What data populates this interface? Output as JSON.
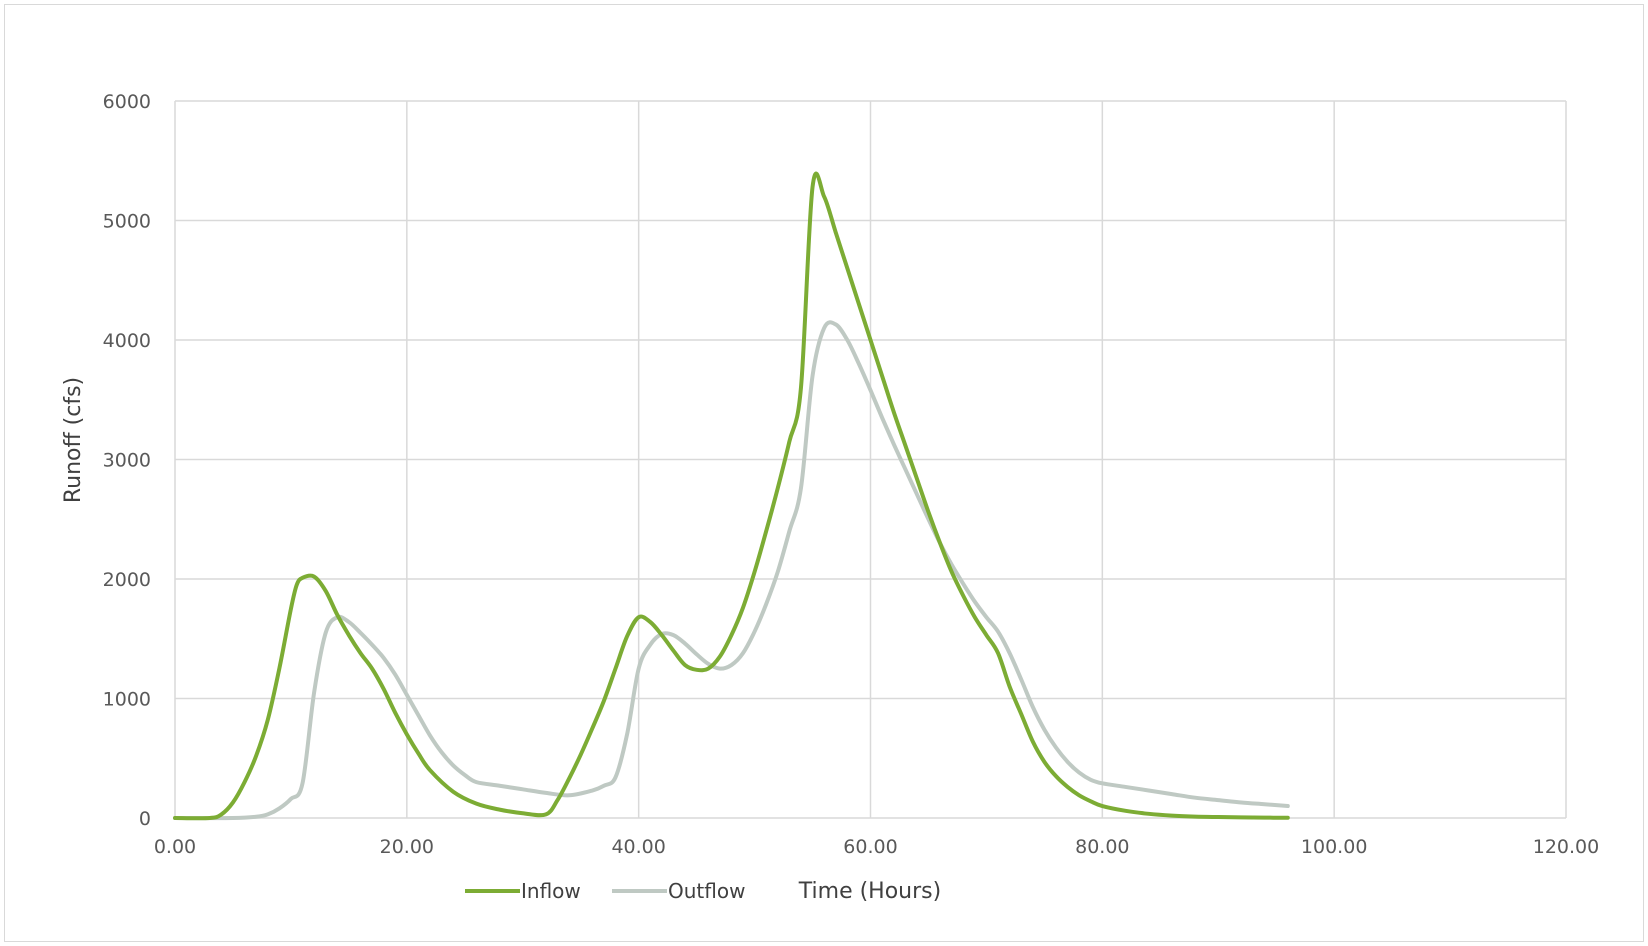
{
  "chart_data": {
    "type": "line",
    "title": "",
    "xlabel": "Time (Hours)",
    "ylabel": "Runoff (cfs)",
    "xlim": [
      0,
      120
    ],
    "ylim": [
      0,
      6000
    ],
    "x_ticks": [
      0,
      20,
      40,
      60,
      80,
      100,
      120
    ],
    "x_tick_labels": [
      "0.00",
      "20.00",
      "40.00",
      "60.00",
      "80.00",
      "100.00",
      "120.00"
    ],
    "y_ticks": [
      0,
      1000,
      2000,
      3000,
      4000,
      5000,
      6000
    ],
    "y_tick_labels": [
      "0",
      "1000",
      "2000",
      "3000",
      "4000",
      "5000",
      "6000"
    ],
    "grid": true,
    "legend_position": "bottom",
    "series": [
      {
        "name": "Inflow",
        "color": "#7cac34",
        "x": [
          0,
          3,
          4,
          5,
          6,
          7,
          8,
          9,
          10,
          10.5,
          11,
          12,
          13,
          14,
          15,
          16,
          17,
          18,
          19,
          20,
          21,
          22,
          24,
          26,
          28,
          30,
          32,
          33,
          34,
          35,
          36,
          37,
          38,
          39,
          40,
          41,
          42,
          43,
          44,
          45,
          46,
          47,
          48,
          49,
          50,
          51,
          52,
          53,
          54,
          55,
          56,
          57,
          58,
          59,
          60,
          61,
          62,
          63,
          64,
          65,
          66,
          67,
          68,
          69,
          70,
          71,
          72,
          73,
          74,
          75,
          76,
          77,
          78,
          79,
          80,
          82,
          84,
          86,
          88,
          90,
          92,
          94,
          96
        ],
        "y": [
          0,
          0,
          30,
          130,
          300,
          520,
          820,
          1250,
          1750,
          1950,
          2010,
          2020,
          1900,
          1700,
          1530,
          1380,
          1250,
          1080,
          880,
          700,
          540,
          400,
          220,
          120,
          70,
          40,
          30,
          150,
          330,
          530,
          750,
          980,
          1250,
          1520,
          1680,
          1640,
          1530,
          1400,
          1280,
          1240,
          1250,
          1350,
          1530,
          1760,
          2060,
          2400,
          2760,
          3150,
          3600,
          5280,
          5200,
          4900,
          4600,
          4300,
          4000,
          3700,
          3400,
          3120,
          2840,
          2560,
          2300,
          2060,
          1860,
          1680,
          1530,
          1380,
          1100,
          870,
          640,
          470,
          350,
          260,
          190,
          140,
          100,
          60,
          35,
          20,
          12,
          8,
          5,
          3,
          2
        ]
      },
      {
        "name": "Outflow",
        "color": "#bfc9c3",
        "x": [
          0,
          5,
          7,
          8,
          9,
          10,
          11,
          12,
          13,
          14,
          15,
          16,
          17,
          18,
          19,
          20,
          21,
          22,
          23,
          24,
          25,
          26,
          28,
          30,
          32,
          34,
          36,
          37,
          38,
          39,
          40,
          41,
          42,
          43,
          44,
          45,
          46,
          47,
          48,
          49,
          50,
          51,
          52,
          53,
          54,
          55,
          56,
          57,
          58,
          59,
          60,
          61,
          62,
          63,
          64,
          65,
          66,
          67,
          68,
          69,
          70,
          71,
          72,
          73,
          74,
          75,
          76,
          77,
          78,
          79,
          80,
          82,
          84,
          86,
          88,
          90,
          92,
          94,
          96
        ],
        "y": [
          0,
          0,
          10,
          30,
          80,
          160,
          290,
          1050,
          1550,
          1680,
          1640,
          1550,
          1450,
          1340,
          1200,
          1030,
          860,
          690,
          550,
          440,
          360,
          300,
          270,
          240,
          210,
          190,
          230,
          270,
          340,
          700,
          1250,
          1450,
          1540,
          1530,
          1460,
          1370,
          1290,
          1250,
          1280,
          1380,
          1560,
          1790,
          2060,
          2400,
          2760,
          3700,
          4100,
          4130,
          4000,
          3800,
          3580,
          3350,
          3130,
          2920,
          2710,
          2500,
          2300,
          2120,
          1960,
          1810,
          1680,
          1560,
          1380,
          1160,
          930,
          740,
          590,
          470,
          380,
          320,
          290,
          260,
          230,
          200,
          170,
          150,
          130,
          115,
          100
        ]
      }
    ]
  }
}
